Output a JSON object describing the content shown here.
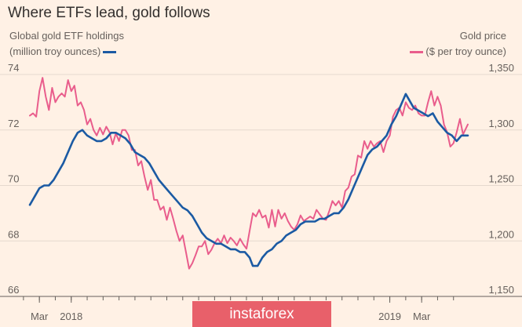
{
  "chart_data": {
    "type": "line",
    "title": "Where ETFs lead, gold follows",
    "left_axis": {
      "label_line1": "Global gold ETF holdings",
      "label_line2": "(million troy ounces)",
      "range": [
        66,
        74
      ],
      "ticks": [
        "74",
        "72",
        "70",
        "68",
        "66"
      ]
    },
    "right_axis": {
      "label_line1": "Gold price",
      "label_line2": "($ per troy ounce)",
      "range": [
        1150,
        1350
      ],
      "ticks": [
        "1,350",
        "1,300",
        "1,250",
        "1,200",
        "1,150"
      ]
    },
    "x_range_months": [
      -10.6,
      16.9
    ],
    "x_ticks": [
      {
        "label": "Mar",
        "m": -10
      },
      {
        "label": "2018",
        "m": -8
      },
      {
        "label": "2019",
        "m": 12
      },
      {
        "label": "Mar",
        "m": 14
      }
    ],
    "x_minor_ticks_m": [
      -11,
      -10,
      -9,
      -8,
      -7,
      -6,
      -5,
      -4,
      -3,
      -2,
      -1,
      0,
      1,
      2,
      3,
      4,
      5,
      6,
      7,
      8,
      9,
      10,
      11,
      12,
      13,
      14,
      15,
      16
    ],
    "grid": true,
    "series": [
      {
        "name": "Global gold ETF holdings",
        "axis": "left",
        "color": "#1b5aa3",
        "points": [
          [
            -10.6,
            69.3
          ],
          [
            -10.3,
            69.6
          ],
          [
            -10.0,
            69.9
          ],
          [
            -9.7,
            70.0
          ],
          [
            -9.4,
            70.0
          ],
          [
            -9.1,
            70.2
          ],
          [
            -8.8,
            70.5
          ],
          [
            -8.5,
            70.8
          ],
          [
            -8.2,
            71.2
          ],
          [
            -7.9,
            71.6
          ],
          [
            -7.6,
            71.9
          ],
          [
            -7.3,
            72.0
          ],
          [
            -7.0,
            71.8
          ],
          [
            -6.7,
            71.7
          ],
          [
            -6.4,
            71.6
          ],
          [
            -6.1,
            71.6
          ],
          [
            -5.8,
            71.7
          ],
          [
            -5.5,
            71.9
          ],
          [
            -5.2,
            71.9
          ],
          [
            -4.9,
            71.8
          ],
          [
            -4.6,
            71.7
          ],
          [
            -4.3,
            71.5
          ],
          [
            -4.0,
            71.2
          ],
          [
            -3.7,
            71.1
          ],
          [
            -3.4,
            71.0
          ],
          [
            -3.1,
            70.8
          ],
          [
            -2.8,
            70.5
          ],
          [
            -2.5,
            70.2
          ],
          [
            -2.2,
            70.0
          ],
          [
            -1.9,
            69.8
          ],
          [
            -1.6,
            69.6
          ],
          [
            -1.3,
            69.4
          ],
          [
            -1.0,
            69.2
          ],
          [
            -0.7,
            69.1
          ],
          [
            -0.4,
            68.9
          ],
          [
            -0.1,
            68.6
          ],
          [
            0.2,
            68.3
          ],
          [
            0.5,
            68.1
          ],
          [
            0.8,
            68.0
          ],
          [
            1.1,
            67.9
          ],
          [
            1.4,
            67.9
          ],
          [
            1.7,
            67.8
          ],
          [
            2.0,
            67.7
          ],
          [
            2.3,
            67.7
          ],
          [
            2.6,
            67.6
          ],
          [
            2.9,
            67.6
          ],
          [
            3.2,
            67.4
          ],
          [
            3.4,
            67.1
          ],
          [
            3.7,
            67.1
          ],
          [
            4.0,
            67.4
          ],
          [
            4.3,
            67.6
          ],
          [
            4.6,
            67.7
          ],
          [
            4.9,
            67.9
          ],
          [
            5.2,
            68.0
          ],
          [
            5.5,
            68.2
          ],
          [
            5.8,
            68.3
          ],
          [
            6.1,
            68.4
          ],
          [
            6.4,
            68.6
          ],
          [
            6.7,
            68.7
          ],
          [
            7.0,
            68.7
          ],
          [
            7.3,
            68.7
          ],
          [
            7.6,
            68.8
          ],
          [
            7.9,
            68.8
          ],
          [
            8.2,
            68.9
          ],
          [
            8.5,
            69.0
          ],
          [
            8.8,
            69.0
          ],
          [
            9.1,
            69.2
          ],
          [
            9.4,
            69.5
          ],
          [
            9.7,
            69.9
          ],
          [
            10.0,
            70.3
          ],
          [
            10.3,
            70.7
          ],
          [
            10.6,
            71.1
          ],
          [
            10.9,
            71.3
          ],
          [
            11.2,
            71.4
          ],
          [
            11.5,
            71.6
          ],
          [
            11.8,
            71.8
          ],
          [
            12.1,
            72.2
          ],
          [
            12.4,
            72.5
          ],
          [
            12.7,
            72.9
          ],
          [
            13.0,
            73.3
          ],
          [
            13.2,
            73.1
          ],
          [
            13.5,
            72.8
          ],
          [
            13.8,
            72.7
          ],
          [
            14.1,
            72.6
          ],
          [
            14.4,
            72.5
          ],
          [
            14.7,
            72.6
          ],
          [
            15.0,
            72.3
          ],
          [
            15.3,
            72.1
          ],
          [
            15.6,
            71.9
          ],
          [
            15.9,
            71.8
          ],
          [
            16.2,
            71.6
          ],
          [
            16.5,
            71.8
          ],
          [
            16.9,
            71.8
          ]
        ]
      },
      {
        "name": "Gold price",
        "axis": "right",
        "color": "#e95d8c",
        "points": [
          [
            -10.6,
            1313
          ],
          [
            -10.4,
            1315
          ],
          [
            -10.2,
            1312
          ],
          [
            -10.0,
            1335
          ],
          [
            -9.8,
            1347
          ],
          [
            -9.6,
            1330
          ],
          [
            -9.4,
            1318
          ],
          [
            -9.2,
            1338
          ],
          [
            -9.0,
            1325
          ],
          [
            -8.8,
            1330
          ],
          [
            -8.6,
            1333
          ],
          [
            -8.4,
            1330
          ],
          [
            -8.2,
            1345
          ],
          [
            -8.0,
            1335
          ],
          [
            -7.8,
            1340
          ],
          [
            -7.6,
            1322
          ],
          [
            -7.4,
            1325
          ],
          [
            -7.2,
            1318
          ],
          [
            -7.0,
            1305
          ],
          [
            -6.8,
            1310
          ],
          [
            -6.6,
            1300
          ],
          [
            -6.4,
            1295
          ],
          [
            -6.2,
            1302
          ],
          [
            -6.0,
            1296
          ],
          [
            -5.8,
            1303
          ],
          [
            -5.6,
            1298
          ],
          [
            -5.4,
            1287
          ],
          [
            -5.2,
            1297
          ],
          [
            -5.0,
            1290
          ],
          [
            -4.8,
            1300
          ],
          [
            -4.6,
            1300
          ],
          [
            -4.4,
            1295
          ],
          [
            -4.2,
            1282
          ],
          [
            -4.0,
            1282
          ],
          [
            -3.8,
            1268
          ],
          [
            -3.6,
            1272
          ],
          [
            -3.4,
            1258
          ],
          [
            -3.2,
            1246
          ],
          [
            -3.0,
            1255
          ],
          [
            -2.8,
            1237
          ],
          [
            -2.6,
            1237
          ],
          [
            -2.4,
            1228
          ],
          [
            -2.2,
            1231
          ],
          [
            -2.0,
            1219
          ],
          [
            -1.8,
            1230
          ],
          [
            -1.6,
            1220
          ],
          [
            -1.4,
            1209
          ],
          [
            -1.2,
            1200
          ],
          [
            -1.0,
            1205
          ],
          [
            -0.8,
            1190
          ],
          [
            -0.6,
            1175
          ],
          [
            -0.4,
            1180
          ],
          [
            -0.2,
            1187
          ],
          [
            0.0,
            1195
          ],
          [
            0.2,
            1195
          ],
          [
            0.4,
            1200
          ],
          [
            0.6,
            1188
          ],
          [
            0.8,
            1192
          ],
          [
            1.0,
            1198
          ],
          [
            1.2,
            1202
          ],
          [
            1.4,
            1198
          ],
          [
            1.6,
            1205
          ],
          [
            1.8,
            1198
          ],
          [
            2.0,
            1203
          ],
          [
            2.2,
            1200
          ],
          [
            2.4,
            1196
          ],
          [
            2.6,
            1202
          ],
          [
            2.8,
            1197
          ],
          [
            3.0,
            1193
          ],
          [
            3.2,
            1209
          ],
          [
            3.4,
            1225
          ],
          [
            3.6,
            1222
          ],
          [
            3.8,
            1228
          ],
          [
            4.0,
            1221
          ],
          [
            4.2,
            1223
          ],
          [
            4.4,
            1212
          ],
          [
            4.6,
            1228
          ],
          [
            4.8,
            1213
          ],
          [
            5.0,
            1228
          ],
          [
            5.2,
            1220
          ],
          [
            5.4,
            1225
          ],
          [
            5.6,
            1218
          ],
          [
            5.8,
            1213
          ],
          [
            6.0,
            1210
          ],
          [
            6.2,
            1215
          ],
          [
            6.4,
            1223
          ],
          [
            6.6,
            1218
          ],
          [
            6.8,
            1220
          ],
          [
            7.0,
            1222
          ],
          [
            7.2,
            1220
          ],
          [
            7.4,
            1228
          ],
          [
            7.6,
            1224
          ],
          [
            7.8,
            1220
          ],
          [
            8.0,
            1219
          ],
          [
            8.2,
            1227
          ],
          [
            8.4,
            1236
          ],
          [
            8.6,
            1232
          ],
          [
            8.8,
            1236
          ],
          [
            9.0,
            1230
          ],
          [
            9.2,
            1245
          ],
          [
            9.4,
            1248
          ],
          [
            9.6,
            1258
          ],
          [
            9.8,
            1260
          ],
          [
            10.0,
            1277
          ],
          [
            10.2,
            1275
          ],
          [
            10.4,
            1290
          ],
          [
            10.6,
            1283
          ],
          [
            10.8,
            1290
          ],
          [
            11.0,
            1285
          ],
          [
            11.2,
            1288
          ],
          [
            11.4,
            1290
          ],
          [
            11.6,
            1280
          ],
          [
            11.8,
            1290
          ],
          [
            12.0,
            1295
          ],
          [
            12.2,
            1312
          ],
          [
            12.4,
            1318
          ],
          [
            12.6,
            1320
          ],
          [
            12.8,
            1313
          ],
          [
            13.0,
            1325
          ],
          [
            13.2,
            1320
          ],
          [
            13.4,
            1318
          ],
          [
            13.6,
            1322
          ],
          [
            13.8,
            1315
          ],
          [
            14.0,
            1313
          ],
          [
            14.2,
            1313
          ],
          [
            14.4,
            1325
          ],
          [
            14.6,
            1335
          ],
          [
            14.8,
            1322
          ],
          [
            15.0,
            1330
          ],
          [
            15.2,
            1322
          ],
          [
            15.4,
            1305
          ],
          [
            15.6,
            1298
          ],
          [
            15.8,
            1285
          ],
          [
            16.0,
            1288
          ],
          [
            16.2,
            1298
          ],
          [
            16.4,
            1310
          ],
          [
            16.6,
            1296
          ],
          [
            16.9,
            1305
          ]
        ]
      }
    ]
  },
  "watermark": "instaforex"
}
